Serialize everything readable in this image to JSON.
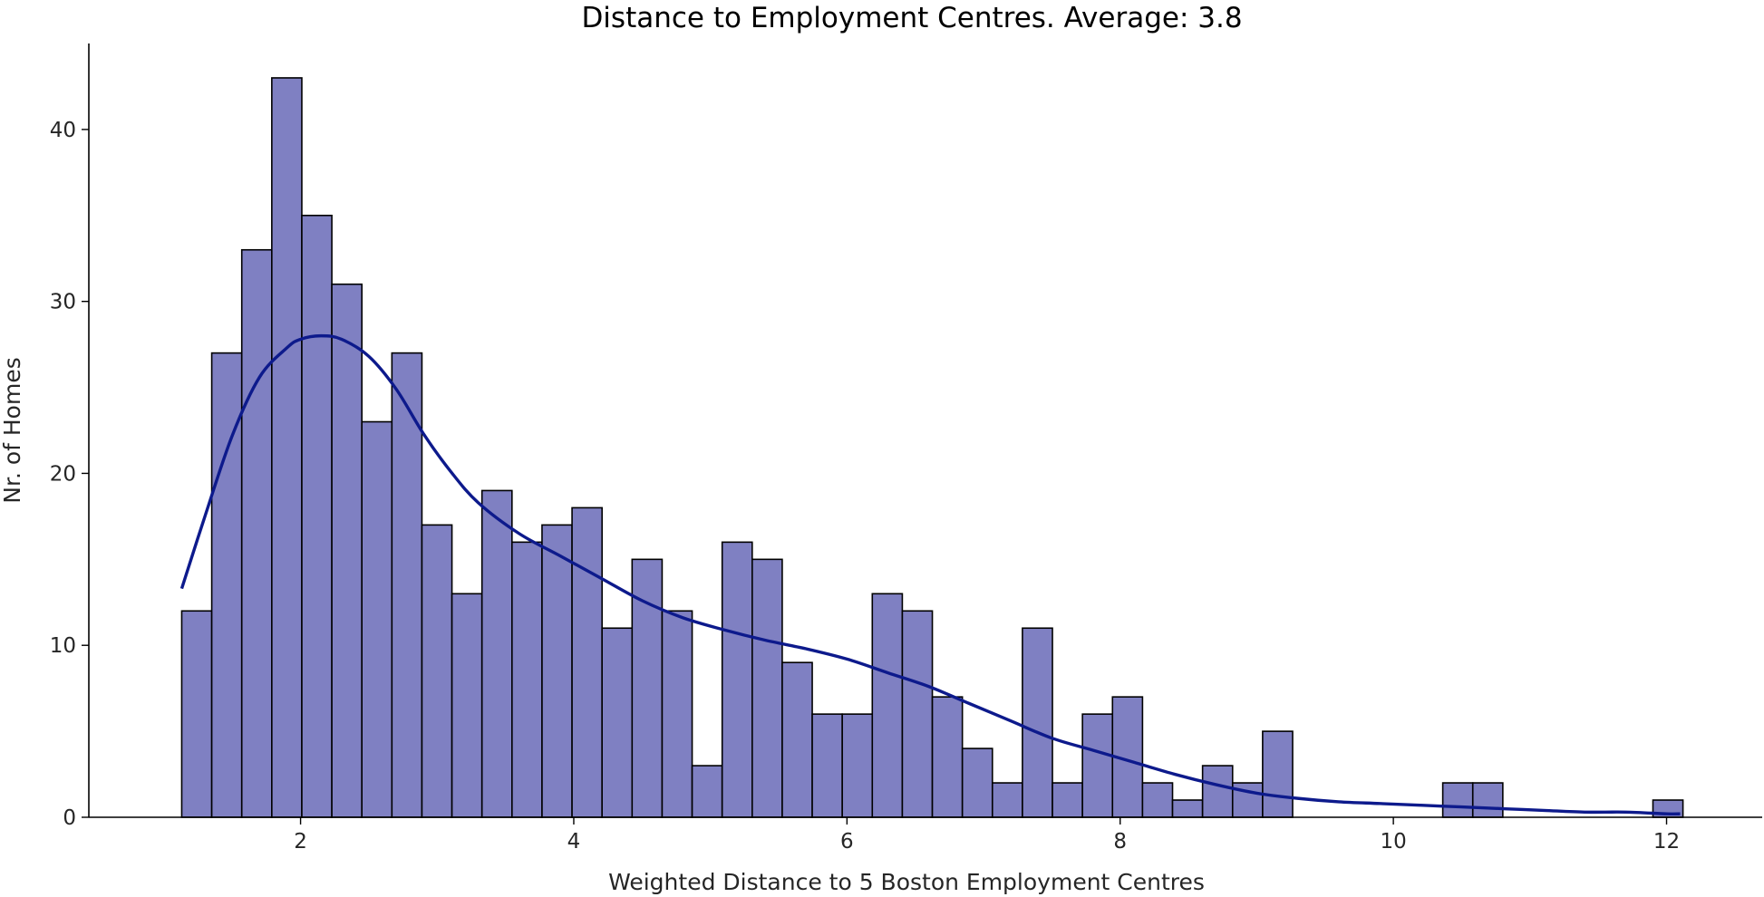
{
  "chart_data": {
    "type": "bar",
    "subtype": "histogram",
    "title": "Distance to Employment Centres. Average: 3.8",
    "xlabel": "Weighted Distance to 5 Boston Employment Centres",
    "ylabel": "Nr. of Homes",
    "xlim": [
      0.45,
      12.7
    ],
    "ylim": [
      0,
      45
    ],
    "xticks": [
      2,
      4,
      6,
      8,
      10,
      12
    ],
    "yticks": [
      0,
      10,
      20,
      30,
      40
    ],
    "bin_start": 1.13,
    "bin_width": 0.2198,
    "bin_counts": [
      12,
      27,
      33,
      43,
      35,
      31,
      23,
      27,
      17,
      13,
      19,
      16,
      17,
      18,
      11,
      15,
      12,
      3,
      16,
      15,
      9,
      6,
      6,
      13,
      12,
      7,
      4,
      2,
      11,
      2,
      6,
      7,
      2,
      1,
      3,
      2,
      5,
      0,
      0,
      0,
      0,
      0,
      2,
      2,
      0,
      0,
      0,
      0,
      0,
      1
    ],
    "kde": {
      "x": [
        1.13,
        1.3,
        1.5,
        1.7,
        1.9,
        2.0,
        2.15,
        2.3,
        2.5,
        2.7,
        2.9,
        3.1,
        3.3,
        3.6,
        3.9,
        4.2,
        4.5,
        4.8,
        5.1,
        5.4,
        5.7,
        6.0,
        6.3,
        6.6,
        6.9,
        7.2,
        7.5,
        7.8,
        8.1,
        8.4,
        8.7,
        9.0,
        9.3,
        9.6,
        9.9,
        10.2,
        10.5,
        10.8,
        11.1,
        11.4,
        11.7,
        12.0,
        12.1
      ],
      "y": [
        13.3,
        17.5,
        22.2,
        25.6,
        27.3,
        27.8,
        28.0,
        27.8,
        26.8,
        24.9,
        22.3,
        20.1,
        18.3,
        16.5,
        15.2,
        13.9,
        12.6,
        11.6,
        10.9,
        10.3,
        9.8,
        9.2,
        8.4,
        7.6,
        6.6,
        5.6,
        4.6,
        3.9,
        3.2,
        2.5,
        1.9,
        1.4,
        1.1,
        0.9,
        0.8,
        0.7,
        0.6,
        0.5,
        0.4,
        0.3,
        0.3,
        0.2,
        0.2
      ]
    },
    "colors": {
      "bar_fill": "#7f80c2",
      "bar_edge": "#000000",
      "kde_line": "#0d1a8c"
    },
    "grid": false
  }
}
